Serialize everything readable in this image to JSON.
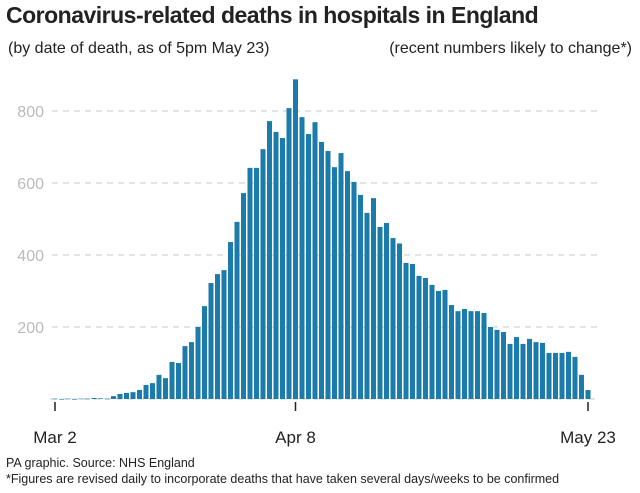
{
  "title": "Coronavirus-related deaths in hospitals in England",
  "subtitle_left": "(by date of death, as of 5pm May 23)",
  "subtitle_right": "(recent numbers likely to change*)",
  "footer_source": "PA graphic. Source: NHS England",
  "footer_note": "*Figures are revised daily to incorporate deaths that have taken several days/weeks to be confirmed",
  "colors": {
    "bar": "#1b7bab",
    "grid": "#c8c8c8"
  },
  "chart_data": {
    "type": "bar",
    "title": "Coronavirus-related deaths in hospitals in England",
    "xlabel": "",
    "ylabel": "",
    "ylim": [
      0,
      900
    ],
    "grid": true,
    "yticks": [
      200,
      400,
      600,
      800
    ],
    "xtick_labels": [
      {
        "index": 0,
        "label": "Mar 2"
      },
      {
        "index": 37,
        "label": "Apr 8"
      },
      {
        "index": 82,
        "label": "May 23"
      }
    ],
    "start_date": "Mar 2",
    "end_date": "May 23",
    "values": [
      1,
      0,
      1,
      0,
      1,
      1,
      3,
      2,
      1,
      8,
      14,
      17,
      19,
      25,
      39,
      44,
      67,
      58,
      103,
      100,
      147,
      158,
      200,
      258,
      322,
      347,
      358,
      436,
      492,
      572,
      642,
      642,
      694,
      772,
      742,
      725,
      808,
      888,
      783,
      736,
      769,
      714,
      689,
      644,
      683,
      633,
      603,
      567,
      517,
      558,
      478,
      489,
      447,
      432,
      378,
      375,
      342,
      336,
      317,
      300,
      303,
      261,
      244,
      250,
      244,
      244,
      239,
      200,
      192,
      186,
      153,
      172,
      153,
      167,
      158,
      156,
      128,
      128,
      128,
      131,
      117,
      67,
      25
    ]
  }
}
